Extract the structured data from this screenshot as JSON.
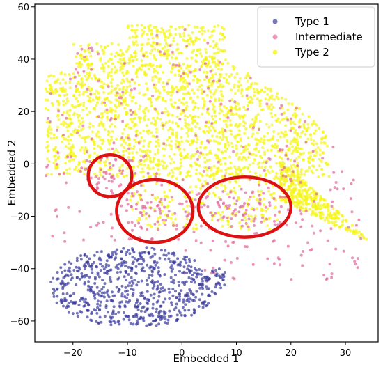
{
  "chart_data": {
    "type": "scatter",
    "title": "",
    "xlabel": "Embedded 1",
    "ylabel": "Embedded 2",
    "xlim": [
      -27,
      36
    ],
    "ylim": [
      -68,
      61
    ],
    "xticks": [
      -20,
      -10,
      0,
      10,
      20,
      30
    ],
    "yticks": [
      -60,
      -40,
      -20,
      0,
      20,
      40,
      60
    ],
    "grid": false,
    "legend": {
      "position": "top-right",
      "entries": [
        "Type 1",
        "Intermediate",
        "Type 2"
      ]
    },
    "series": [
      {
        "name": "Type 2",
        "color": "#f5f51d",
        "approx_point_count": 2600,
        "clusters": [
          {
            "region": "main-upper",
            "x_range": [
              -25,
              27
            ],
            "y_range": [
              -5,
              53
            ],
            "count": 2000
          },
          {
            "region": "right-tail",
            "x_range": [
              18,
              34
            ],
            "y_range": [
              -30,
              2
            ],
            "count": 380
          },
          {
            "region": "lower-middle",
            "x_range": [
              -10,
              18
            ],
            "y_range": [
              -25,
              -5
            ],
            "count": 220
          }
        ]
      },
      {
        "name": "Intermediate",
        "color": "#e0679a",
        "approx_point_count": 520,
        "clusters": [
          {
            "region": "circle-1",
            "center": [
              -13,
              -3
            ],
            "spread": [
              2.5,
              4
            ],
            "count": 45
          },
          {
            "region": "circle-2",
            "center": [
              -5,
              -17
            ],
            "spread": [
              4,
              5
            ],
            "count": 55
          },
          {
            "region": "circle-3",
            "center": [
              11,
              -17
            ],
            "spread": [
              5,
              4
            ],
            "count": 65
          },
          {
            "region": "scattered",
            "x_range": [
              -25,
              33
            ],
            "y_range": [
              -45,
              53
            ],
            "count": 350
          }
        ]
      },
      {
        "name": "Type 1",
        "color": "#3b3b9c",
        "approx_point_count": 700,
        "clusters": [
          {
            "region": "lower-left",
            "x_range": [
              -25,
              8
            ],
            "y_range": [
              -62,
              -28
            ],
            "count": 700
          }
        ]
      }
    ],
    "annotations": [
      {
        "type": "ellipse",
        "color": "#dd1111",
        "center": [
          -13.2,
          -4.5
        ],
        "radius": [
          4,
          8
        ]
      },
      {
        "type": "ellipse",
        "color": "#dd1111",
        "center": [
          -5,
          -18
        ],
        "radius": [
          7,
          12
        ]
      },
      {
        "type": "ellipse",
        "color": "#dd1111",
        "center": [
          11.5,
          -16.5
        ],
        "radius": [
          8.5,
          11.5
        ]
      }
    ]
  }
}
